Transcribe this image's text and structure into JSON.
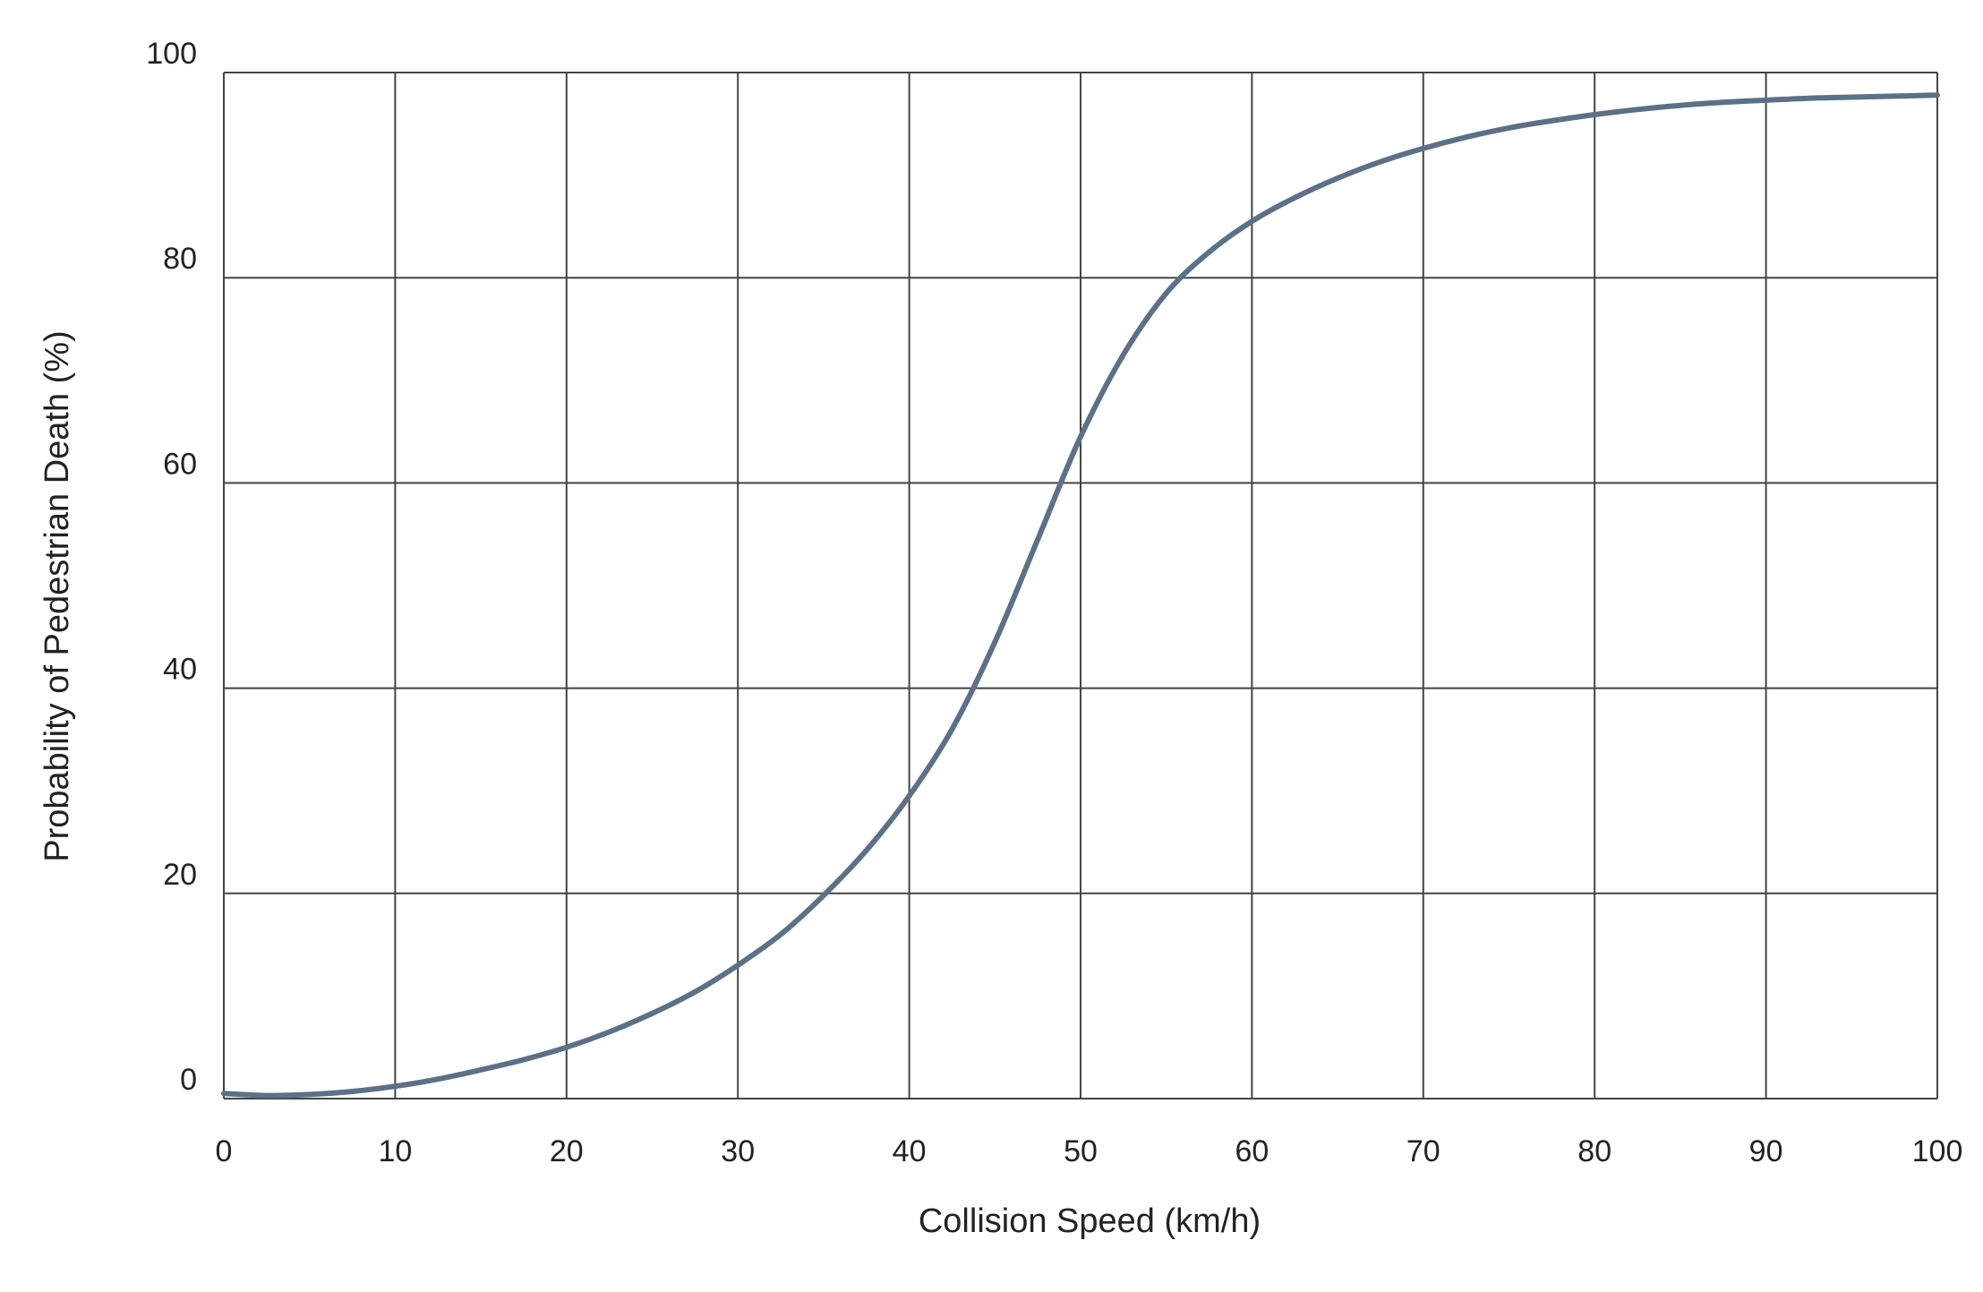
{
  "chart_data": {
    "type": "line",
    "title": "",
    "xlabel": "Collision Speed (km/h)",
    "ylabel": "Probability of Pedestrian Death (%)",
    "xlim": [
      0,
      100
    ],
    "ylim": [
      0,
      100
    ],
    "x_ticks": [
      0,
      10,
      20,
      30,
      40,
      50,
      60,
      70,
      80,
      90,
      100
    ],
    "y_ticks": [
      0,
      20,
      40,
      60,
      80,
      100
    ],
    "x_tick_labels": [
      "0",
      "10",
      "20",
      "30",
      "40",
      "50",
      "60",
      "70",
      "80",
      "90",
      "100"
    ],
    "y_tick_labels": [
      "0",
      "20",
      "40",
      "60",
      "80",
      "100"
    ],
    "grid": true,
    "line_color": "#5c7086",
    "grid_color": "#444444",
    "series": [
      {
        "x": [
          0,
          2.5,
          5,
          7.5,
          10,
          12.5,
          15,
          17.5,
          20,
          22.5,
          25,
          27.5,
          30,
          32.5,
          35,
          37.5,
          40,
          42.5,
          45,
          47.5,
          50,
          52.5,
          55,
          57.5,
          60,
          62.5,
          65,
          67.5,
          70,
          72.5,
          75,
          77.5,
          80,
          82.5,
          85,
          87.5,
          90,
          92.5,
          95,
          97.5,
          100
        ],
        "y": [
          0.5,
          0.3,
          0.4,
          0.7,
          1.2,
          1.9,
          2.8,
          3.8,
          5.0,
          6.5,
          8.3,
          10.4,
          13.0,
          16.0,
          19.8,
          24.2,
          29.5,
          36.0,
          44.5,
          54.5,
          64.5,
          72.5,
          78.5,
          82.5,
          85.5,
          87.8,
          89.7,
          91.3,
          92.6,
          93.7,
          94.6,
          95.3,
          95.9,
          96.4,
          96.8,
          97.1,
          97.3,
          97.5,
          97.6,
          97.7,
          97.8
        ]
      }
    ]
  }
}
